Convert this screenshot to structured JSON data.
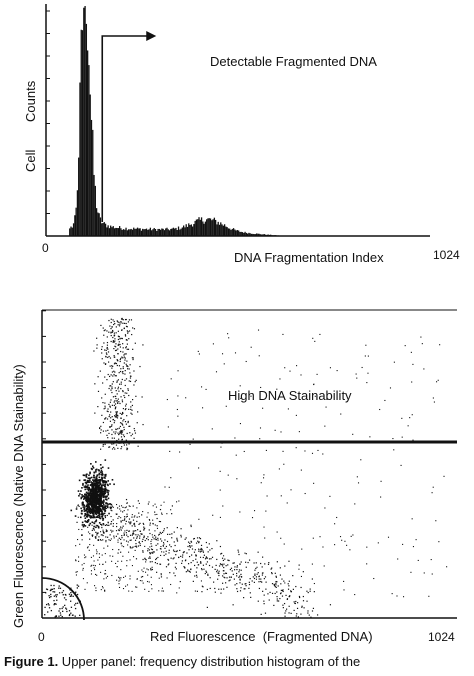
{
  "chart_data": [
    {
      "type": "histogram",
      "ylabel_lines": [
        "Cell",
        "Counts"
      ],
      "xlabel": "DNA Fragmentation Index",
      "xlim": [
        0,
        1024
      ],
      "x_tick_labels": [
        "0",
        "1024"
      ],
      "annotation": "Detectable Fragmented DNA",
      "gate_x": 150,
      "grid": false,
      "peak": {
        "center": 102,
        "height_fraction": 1.0
      },
      "tail_level_fraction": 0.04,
      "secondary_bump": {
        "center": 430,
        "height_fraction": 0.08
      }
    },
    {
      "type": "scatter",
      "xlabel": "Red Fluorescence  (Fragmented DNA)",
      "ylabel": "Green Fluorescence  (Native DNA Stainability)",
      "xlim": [
        0,
        1024
      ],
      "ylim": [
        0,
        1024
      ],
      "x_tick_labels": [
        "0",
        "1024"
      ],
      "annotation": "High DNA Stainability",
      "gate_y": 585,
      "grid": false,
      "dense_cluster": {
        "x": 130,
        "y": 400
      }
    }
  ],
  "caption": {
    "label": "Figure 1.",
    "text": " Upper panel: frequency distribution histogram of the"
  }
}
